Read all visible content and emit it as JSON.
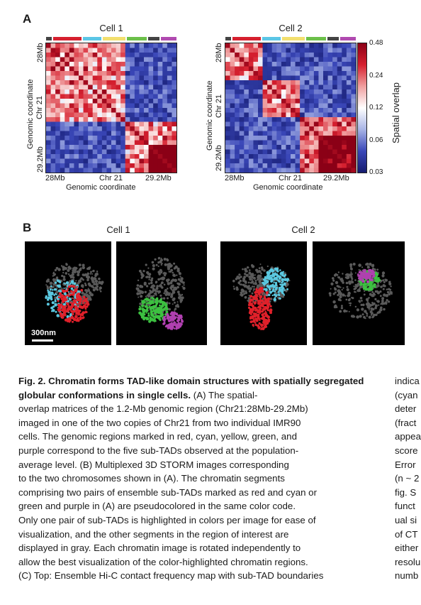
{
  "panel_a": {
    "letter": "A",
    "cell1_title": "Cell 1",
    "cell2_title": "Cell 2",
    "y_axis_label_line1": "Genomic coordinate",
    "y_axis_label_line2": "Chr 21",
    "y_tick_top": "28Mb",
    "y_tick_bottom": "29.2Mb",
    "x_tick_left": "28Mb",
    "x_tick_mid": "Chr 21",
    "x_tick_right": "29.2Mb",
    "x_axis_label": "Genomic coordinate",
    "colorbar_label": "Spatial overlap",
    "colorbar_ticks": [
      "0.48",
      "0.24",
      "0.12",
      "0.06",
      "0.03"
    ],
    "domain_colors": [
      "#444444",
      "#d6202f",
      "#5bc6e6",
      "#f2df6e",
      "#6cc04a",
      "#444444",
      "#b04ab0"
    ]
  },
  "panel_b": {
    "letter": "B",
    "cell1_title": "Cell 1",
    "cell2_title": "Cell 2",
    "scale_bar_label": "300nm",
    "colors": {
      "gray": "#5a5a5a",
      "red": "#e0202a",
      "cyan": "#5ac8e0",
      "green": "#3cc040",
      "purple": "#b040b0"
    }
  },
  "caption": {
    "title": "Fig. 2. Chromatin forms TAD-like domain structures with spatially segregated globular conformations in single cells.",
    "lines": [
      " (A) The spatial-",
      "overlap matrices of the 1.2-Mb genomic region (Chr21:28Mb-29.2Mb)",
      "imaged in one of the two copies of Chr21 from two individual IMR90",
      "cells. The genomic regions marked in red, cyan, yellow, green, and",
      "purple correspond to the five sub-TADs observed at the population-",
      "average level. (B) Multiplexed 3D STORM images corresponding",
      "to the two chromosomes shown in (A). The chromatin segments",
      "comprising two pairs of ensemble sub-TADs marked as red and cyan or",
      "green and purple in (A) are pseudocolored in the same color code.",
      "Only one pair of sub-TADs is highlighted in colors per image for ease of",
      "visualization, and the other segments in the region of interest are",
      "displayed in gray. Each chromatin image is rotated independently to",
      "allow the best visualization of the color-highlighted chromatin regions.",
      "(C) Top: Ensemble Hi-C contact frequency map with sub-TAD boundaries"
    ],
    "side_column": [
      "indica",
      "(cyan",
      "deter",
      "(fract",
      "appea",
      "score",
      "Error",
      "(n ~ 2",
      "fig. S",
      "funct",
      "ual si",
      "of CT",
      "either",
      "resolu",
      "numb"
    ]
  }
}
